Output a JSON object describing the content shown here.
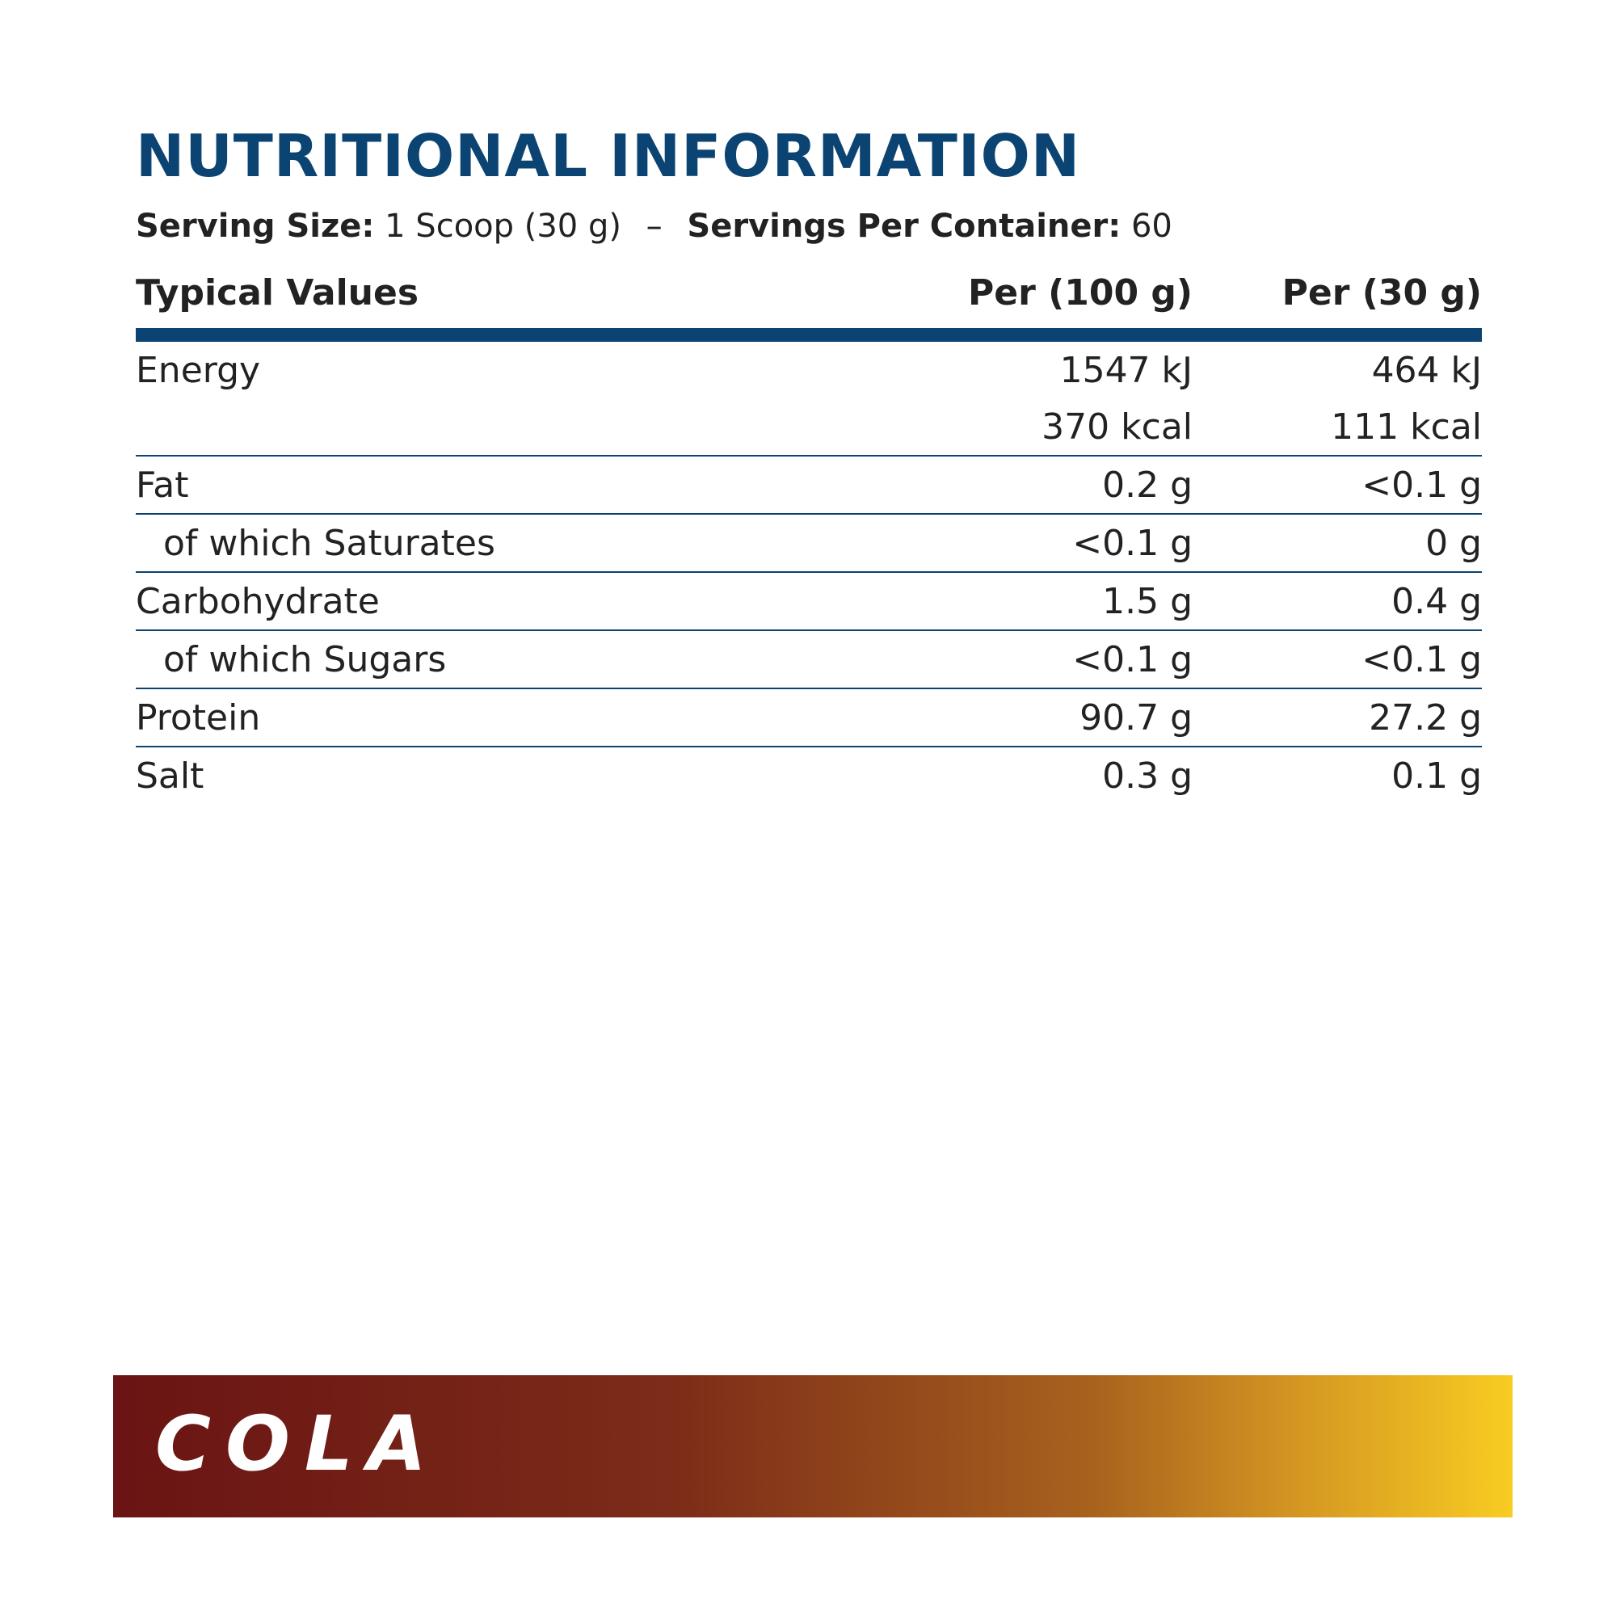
{
  "title": "NUTRITIONAL INFORMATION",
  "serving": {
    "size_label": "Serving Size:",
    "size_value": "1 Scoop (30 g)",
    "separator": "–",
    "per_container_label": "Servings Per Container:",
    "per_container_value": "60"
  },
  "table": {
    "headers": [
      "Typical Values",
      "Per (100 g)",
      "Per (30 g)"
    ],
    "rows": [
      {
        "name": "Energy",
        "per100": "1547 kJ",
        "per30": "464 kJ"
      },
      {
        "name": "",
        "per100": "370 kcal",
        "per30": "111 kcal"
      },
      {
        "name": "Fat",
        "per100": "0.2 g",
        "per30": "<0.1 g"
      },
      {
        "name": "of which Saturates",
        "per100": "<0.1 g",
        "per30": "0 g"
      },
      {
        "name": "Carbohydrate",
        "per100": "1.5 g",
        "per30": "0.4 g"
      },
      {
        "name": "of which Sugars",
        "per100": "<0.1 g",
        "per30": "<0.1 g"
      },
      {
        "name": "Protein",
        "per100": "90.7 g",
        "per30": "27.2 g"
      },
      {
        "name": "Salt",
        "per100": "0.3 g",
        "per30": "0.1 g"
      }
    ]
  },
  "flavor": "COLA",
  "colors": {
    "brand_blue": "#0b4472",
    "banner_start": "#6a1414",
    "banner_end": "#f8cc22"
  }
}
